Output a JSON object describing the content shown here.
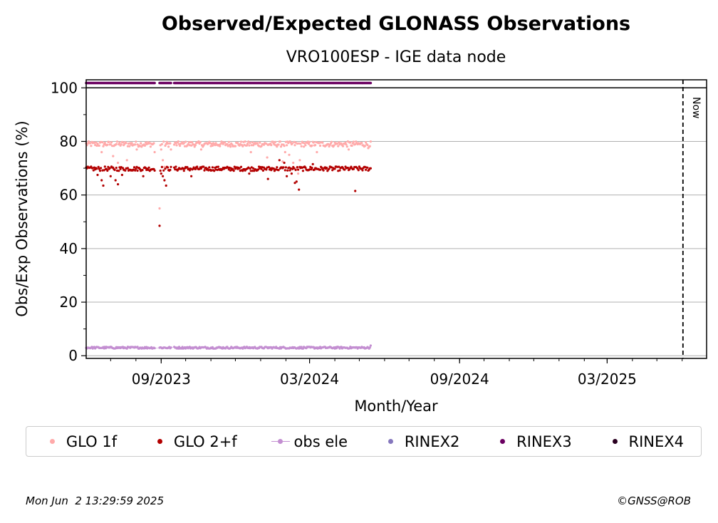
{
  "chart_data": {
    "type": "scatter",
    "title": "Observed/Expected GLONASS Observations",
    "subtitle": "VRO100ESP - IGE data node",
    "xlabel": "Month/Year",
    "ylabel": "Obs/Exp Observations (%)",
    "x_range": [
      "2023-06-01",
      "2025-07-01"
    ],
    "ylim": [
      -1,
      103
    ],
    "y_ticks": [
      0,
      20,
      40,
      60,
      80,
      100
    ],
    "x_ticks": [
      {
        "date": "2023-09-01",
        "label": "09/2023"
      },
      {
        "date": "2024-03-01",
        "label": "03/2024"
      },
      {
        "date": "2024-09-01",
        "label": "09/2024"
      },
      {
        "date": "2025-03-01",
        "label": "03/2025"
      }
    ],
    "grid": "horizontal",
    "reference_line": {
      "y": 100
    },
    "now_line": {
      "date": "2025-06-02",
      "label": "Now"
    },
    "legend_position": "below",
    "series": [
      {
        "name": "GLO 1f",
        "color": "#ffaaaa",
        "marker": "dot",
        "segments": [
          [
            "2023-06-01",
            "2023-08-24"
          ],
          [
            "2023-08-30",
            "2023-09-13"
          ],
          [
            "2023-09-17",
            "2024-05-15"
          ]
        ],
        "base": 79,
        "jitter": 1.0,
        "dips": [
          [
            "2023-06-20",
            76
          ],
          [
            "2023-07-04",
            74.5
          ],
          [
            "2023-07-10",
            72
          ],
          [
            "2023-07-21",
            73
          ],
          [
            "2023-08-02",
            77
          ],
          [
            "2023-08-24",
            76
          ],
          [
            "2023-08-30",
            55
          ],
          [
            "2023-09-01",
            77
          ],
          [
            "2023-09-03",
            73
          ],
          [
            "2023-09-05",
            70.5
          ],
          [
            "2023-09-13",
            77
          ],
          [
            "2023-10-20",
            77
          ],
          [
            "2023-12-20",
            76
          ],
          [
            "2024-01-09",
            74
          ],
          [
            "2024-01-28",
            72.5
          ],
          [
            "2024-01-31",
            76
          ],
          [
            "2024-02-05",
            75
          ],
          [
            "2024-02-10",
            72
          ],
          [
            "2024-02-14",
            70
          ],
          [
            "2024-02-16",
            68
          ],
          [
            "2024-02-18",
            73
          ],
          [
            "2024-03-10",
            76
          ],
          [
            "2024-04-18",
            77
          ],
          [
            "2024-05-12",
            77.5
          ]
        ]
      },
      {
        "name": "GLO 2+f",
        "color": "#b30000",
        "marker": "dot",
        "segments": [
          [
            "2023-06-01",
            "2023-08-24"
          ],
          [
            "2023-08-30",
            "2023-09-13"
          ],
          [
            "2023-09-17",
            "2024-05-15"
          ]
        ],
        "base": 69.8,
        "jitter": 0.8,
        "dips": [
          [
            "2023-06-15",
            67.5
          ],
          [
            "2023-06-20",
            65.5
          ],
          [
            "2023-06-22",
            63.5
          ],
          [
            "2023-07-01",
            67
          ],
          [
            "2023-07-07",
            65.5
          ],
          [
            "2023-07-10",
            64
          ],
          [
            "2023-07-15",
            67.5
          ],
          [
            "2023-08-10",
            67
          ],
          [
            "2023-08-30",
            48.5
          ],
          [
            "2023-09-01",
            68
          ],
          [
            "2023-09-03",
            67
          ],
          [
            "2023-09-05",
            65.5
          ],
          [
            "2023-09-07",
            63.5
          ],
          [
            "2023-10-08",
            67
          ],
          [
            "2023-12-18",
            68
          ],
          [
            "2024-01-10",
            66
          ],
          [
            "2024-01-24",
            73
          ],
          [
            "2024-01-30",
            72
          ],
          [
            "2024-02-02",
            67
          ],
          [
            "2024-02-08",
            68
          ],
          [
            "2024-02-12",
            64.5
          ],
          [
            "2024-02-14",
            65
          ],
          [
            "2024-02-17",
            62
          ],
          [
            "2024-03-05",
            71.5
          ],
          [
            "2024-04-26",
            61.5
          ]
        ]
      },
      {
        "name": "obs ele",
        "color": "#c38ed1",
        "marker": "dot-line",
        "segments": [
          [
            "2023-06-01",
            "2023-08-24"
          ],
          [
            "2023-08-30",
            "2023-09-13"
          ],
          [
            "2023-09-17",
            "2024-05-15"
          ]
        ],
        "base": 3.0,
        "jitter": 0.35,
        "dips": [
          [
            "2024-05-15",
            3.8
          ]
        ]
      },
      {
        "name": "RINEX2",
        "color": "#8577bd",
        "marker": "dot",
        "segments": []
      },
      {
        "name": "RINEX3",
        "color": "#6b0061",
        "marker": "dot",
        "segments": [
          [
            "2023-06-01",
            "2023-08-24"
          ],
          [
            "2023-08-30",
            "2023-09-13"
          ],
          [
            "2023-09-17",
            "2024-05-15"
          ]
        ],
        "base": 101.8,
        "jitter": 0
      },
      {
        "name": "RINEX4",
        "color": "#2a0020",
        "marker": "dot",
        "segments": []
      }
    ]
  },
  "footer": {
    "timestamp": "Mon Jun  2 13:29:59 2025",
    "credit": "©GNSS@ROB"
  }
}
